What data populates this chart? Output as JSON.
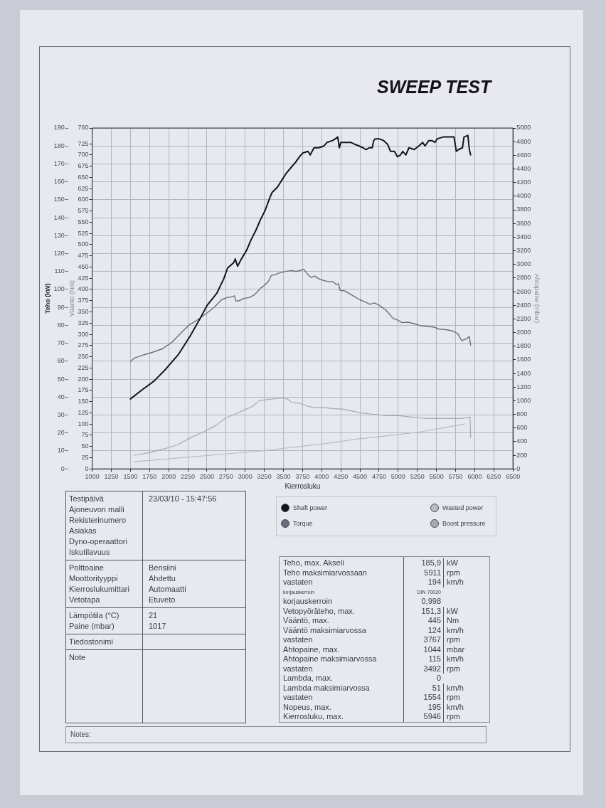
{
  "chart_data": {
    "type": "line",
    "title": "SWEEP TEST",
    "xlabel": "Kierrosluku",
    "ylabel": "Teho (kW)",
    "y2label": "Vääntö (Nm)",
    "y3label": "Ahtopaine (mbar)",
    "xlim": [
      1000,
      6500
    ],
    "xticks": [
      1000,
      1250,
      1500,
      1750,
      2000,
      2250,
      2500,
      2750,
      3000,
      3250,
      3500,
      3750,
      4000,
      4250,
      4500,
      4750,
      5000,
      5250,
      5500,
      5750,
      6000,
      6250,
      6500
    ],
    "ylim": [
      0,
      190
    ],
    "yticks": [
      0,
      10,
      20,
      30,
      40,
      50,
      60,
      70,
      80,
      90,
      100,
      110,
      120,
      130,
      140,
      150,
      160,
      170,
      180,
      190
    ],
    "y2lim": [
      0,
      760
    ],
    "y2ticks": [
      0,
      25,
      50,
      75,
      100,
      125,
      150,
      175,
      200,
      225,
      250,
      275,
      300,
      325,
      350,
      375,
      400,
      425,
      450,
      475,
      500,
      525,
      550,
      575,
      600,
      625,
      650,
      675,
      700,
      725,
      760
    ],
    "y3lim": [
      0,
      5000
    ],
    "y3ticks": [
      0,
      200,
      400,
      600,
      800,
      1000,
      1200,
      1400,
      1600,
      1800,
      2000,
      2200,
      2400,
      2600,
      2800,
      3000,
      3200,
      3400,
      3600,
      3800,
      4000,
      4200,
      4400,
      4600,
      4800,
      5000
    ],
    "grid": true,
    "legend": "bottom",
    "series": [
      {
        "name": "Shaft power",
        "color": "#14141f",
        "x": [
          1500,
          1650,
          1810,
          1970,
          2130,
          2280,
          2400,
          2500,
          2630,
          2720,
          2770,
          2850,
          2870,
          2900,
          2950,
          3020,
          3080,
          3140,
          3200,
          3260,
          3320,
          3350,
          3420,
          3480,
          3540,
          3600,
          3660,
          3710,
          3750,
          3820,
          3850,
          3900,
          3960,
          4030,
          4070,
          4140,
          4180,
          4210,
          4230,
          4250,
          4310,
          4380,
          4430,
          4490,
          4540,
          4580,
          4620,
          4660,
          4680,
          4700,
          4750,
          4810,
          4860,
          4900,
          4950,
          4990,
          5030,
          5060,
          5100,
          5140,
          5210,
          5270,
          5320,
          5350,
          5400,
          5440,
          5480,
          5510,
          5590,
          5650,
          5730,
          5760,
          5790,
          5840,
          5860,
          5911,
          5930,
          5946
        ],
        "values": [
          39,
          44,
          49,
          56,
          64,
          74,
          83,
          91,
          98,
          106,
          112,
          115,
          117,
          113,
          117,
          122,
          128,
          133,
          139,
          144,
          151,
          154,
          157,
          161,
          165,
          168,
          171,
          174,
          176,
          177,
          175,
          179,
          179,
          180,
          182,
          183,
          184,
          185,
          179,
          182,
          182,
          182,
          181,
          180,
          179,
          178,
          179,
          179,
          183,
          184,
          184,
          183,
          181,
          177,
          177,
          174,
          175,
          177,
          175,
          179,
          178,
          180,
          182,
          180,
          183,
          183,
          182,
          184,
          185,
          185,
          185,
          177,
          178,
          179,
          185,
          185.9,
          178,
          175
        ]
      },
      {
        "name": "Torque",
        "color": "#6b6d78",
        "axis": "y2",
        "x": [
          1500,
          1550,
          1670,
          1790,
          1920,
          2040,
          2160,
          2280,
          2320,
          2400,
          2520,
          2600,
          2690,
          2760,
          2840,
          2860,
          2880,
          2920,
          2980,
          3050,
          3110,
          3160,
          3200,
          3250,
          3300,
          3340,
          3390,
          3450,
          3550,
          3620,
          3660,
          3710,
          3767,
          3810,
          3860,
          3910,
          3960,
          4010,
          4070,
          4150,
          4190,
          4220,
          4240,
          4300,
          4370,
          4430,
          4500,
          4570,
          4630,
          4690,
          4750,
          4840,
          4930,
          4990,
          5050,
          5130,
          5220,
          5300,
          5380,
          5470,
          5530,
          5640,
          5720,
          5780,
          5830,
          5890,
          5930,
          5946
        ],
        "values": [
          239,
          247,
          254,
          260,
          268,
          282,
          303,
          323,
          326,
          335,
          350,
          361,
          377,
          382,
          384,
          386,
          374,
          375,
          380,
          382,
          387,
          395,
          403,
          409,
          417,
          431,
          433,
          437,
          441,
          442,
          440,
          442,
          445,
          435,
          427,
          430,
          424,
          421,
          418,
          417,
          411,
          413,
          398,
          397,
          390,
          384,
          377,
          372,
          367,
          370,
          365,
          354,
          336,
          332,
          326,
          327,
          323,
          319,
          318,
          316,
          312,
          310,
          307,
          301,
          286,
          290,
          295,
          276
        ]
      },
      {
        "name": "Wasted power",
        "color": "#b9bbc2",
        "x": [
          1550,
          1970,
          2380,
          2790,
          3210,
          3620,
          4030,
          4440,
          4860,
          5270,
          5680,
          5870
        ],
        "values": [
          4,
          5.5,
          7,
          8.5,
          10,
          12,
          14,
          16.5,
          18.5,
          20.5,
          23.5,
          25
        ]
      },
      {
        "name": "Boost pressure",
        "color": "#a7a9b1",
        "axis": "y3",
        "x": [
          1550,
          1760,
          1960,
          2130,
          2290,
          2450,
          2620,
          2740,
          2860,
          3020,
          3100,
          3180,
          3310,
          3492,
          3560,
          3600,
          3720,
          3810,
          3890,
          4020,
          4180,
          4260,
          4430,
          4510,
          4680,
          4850,
          5010,
          5180,
          5350,
          5510,
          5680,
          5840,
          5940,
          5946
        ],
        "values": [
          200,
          240,
          300,
          360,
          460,
          540,
          640,
          740,
          800,
          880,
          920,
          1000,
          1020,
          1040,
          1020,
          980,
          960,
          920,
          900,
          900,
          880,
          880,
          840,
          820,
          800,
          780,
          780,
          760,
          740,
          740,
          740,
          740,
          760,
          460
        ]
      }
    ],
    "annotations": [
      "Testipäivä",
      "23/03/10 - 15:47:56",
      "Ajoneuvon malli",
      "Rekisterinumero",
      "Asiakas",
      "Dyno-operaattori",
      "Iskutilavuus",
      "Polttoaine",
      "Bensiini",
      "Moottorityyppi",
      "Ahdettu",
      "Kierroslukumittari",
      "Automaatti",
      "Vetotapa",
      "Etuveto",
      "Lämpötila (°C)",
      "21",
      "Paine (mbar)",
      "1017",
      "Tiedostonimi",
      "Note",
      "Teho, max. Akseli",
      "185,9",
      "kW",
      "Teho maksimiarvossaan",
      "5911",
      "rpm",
      "vastaten",
      "194",
      "km/h",
      "korjauskerroin",
      "DIN 70020",
      "korjauskerroin",
      "0,998",
      "Vetopyöräteho, max.",
      "151,3",
      "kW",
      "Vääntö, max.",
      "445",
      "Nm",
      "Vääntö maksimiarvossa",
      "124",
      "km/h",
      "vastaten",
      "3767",
      "rpm",
      "Ahtopaine, max.",
      "1044",
      "mbar",
      "Ahtopaine maksimiarvossa",
      "115",
      "km/h",
      "vastaten",
      "3492",
      "rpm",
      "Lambda, max.",
      "0",
      "Lambda maksimiarvossa",
      "51",
      "km/h",
      "vastaten",
      "1554",
      "rpm",
      "Nopeus, max.",
      "195",
      "km/h",
      "Kierrosluku, max.",
      "5946",
      "rpm",
      "Notes:"
    ]
  }
}
